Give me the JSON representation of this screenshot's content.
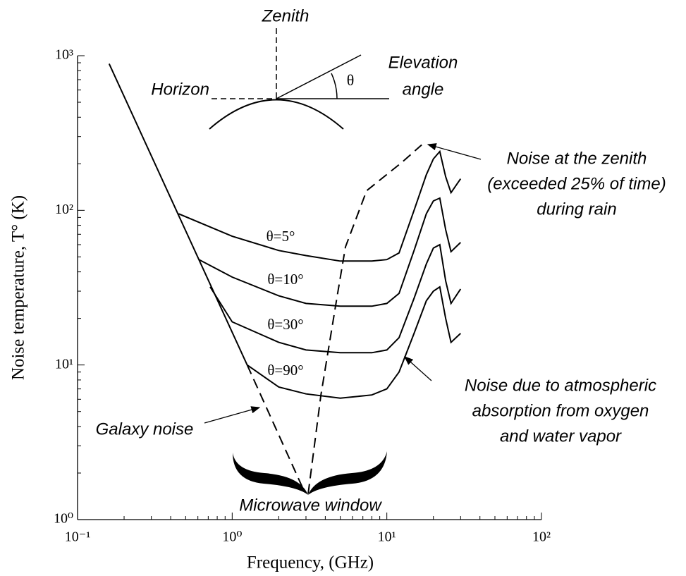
{
  "chart_data": {
    "type": "line",
    "xlabel": "Frequency, (GHz)",
    "ylabel": "Noise temperature, T° (K)",
    "xscale": "log",
    "yscale": "log",
    "xlim": [
      0.1,
      100
    ],
    "ylim": [
      1,
      1000
    ],
    "xticks": [
      {
        "value": 0.1,
        "label": "10⁻¹"
      },
      {
        "value": 1,
        "label": "10⁰"
      },
      {
        "value": 10,
        "label": "10¹"
      },
      {
        "value": 100,
        "label": "10²"
      }
    ],
    "yticks": [
      {
        "value": 1,
        "label": "10⁰"
      },
      {
        "value": 10,
        "label": "10¹"
      },
      {
        "value": 100,
        "label": "10²"
      },
      {
        "value": 1000,
        "label": "10³"
      }
    ],
    "color": "#000000",
    "series": [
      {
        "x": [
          0.16,
          1.25
        ],
        "values": [
          887,
          10
        ]
      },
      {
        "x": [
          1.25,
          2.9
        ],
        "values": [
          10,
          1.55
        ],
        "dashed": true
      },
      {
        "name": "θ=5°",
        "x": [
          0.45,
          1,
          2,
          3,
          5,
          8,
          10,
          12,
          15,
          18,
          20,
          22,
          24,
          26,
          30
        ],
        "values": [
          95,
          68,
          55,
          51,
          47,
          47,
          48,
          53,
          100,
          170,
          215,
          240,
          165,
          130,
          160
        ]
      },
      {
        "name": "θ=10°",
        "x": [
          0.61,
          1,
          2,
          3,
          5,
          8,
          10,
          12,
          15,
          18,
          20,
          22,
          24,
          26,
          30
        ],
        "values": [
          48,
          37,
          28,
          25,
          24,
          24,
          25,
          29,
          55,
          95,
          115,
          120,
          75,
          54,
          62
        ]
      },
      {
        "name": "θ=30°",
        "x": [
          0.72,
          1,
          2,
          3,
          5,
          8,
          10,
          12,
          15,
          18,
          20,
          22,
          24,
          26,
          30
        ],
        "values": [
          32,
          19,
          14,
          12.5,
          12,
          12,
          12.5,
          15,
          27,
          45,
          57,
          60,
          35,
          25,
          31
        ]
      },
      {
        "name": "θ=90°",
        "x": [
          1.25,
          2,
          3,
          5,
          8,
          10,
          12,
          15,
          18,
          20,
          22,
          24,
          26,
          30
        ],
        "values": [
          10,
          7.2,
          6.5,
          6.1,
          6.4,
          7,
          9,
          16,
          26,
          30,
          32,
          20,
          14,
          16
        ]
      },
      {
        "x": [
          3.1,
          3.75,
          4.77,
          5.4,
          7.4,
          12.5,
          16.8
        ],
        "values": [
          1.47,
          6.4,
          27.8,
          58,
          134,
          204,
          265
        ],
        "dashed": true
      }
    ],
    "annotations": [
      {
        "text": [
          "Noise at the zenith",
          "(exceeded 25% of time)",
          "during rain"
        ]
      },
      {
        "text": [
          "Noise due to atmospheric",
          "absorption from oxygen",
          "and water vapor"
        ]
      },
      {
        "text": [
          "Galaxy noise"
        ]
      },
      {
        "text": [
          "Microwave window"
        ]
      }
    ],
    "inset": {
      "zenith": "Zenith",
      "horizon": "Horizon",
      "elevation": [
        "Elevation",
        "angle"
      ],
      "angle_symbol": "θ"
    }
  }
}
